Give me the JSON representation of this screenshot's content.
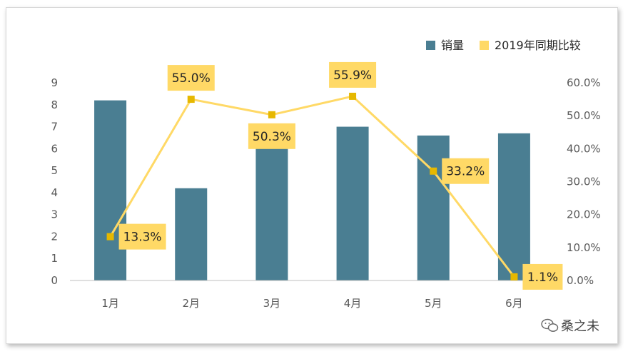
{
  "chart_data": {
    "type": "bar",
    "categories": [
      "1月",
      "2月",
      "3月",
      "4月",
      "5月",
      "6月"
    ],
    "series": [
      {
        "name": "销量",
        "type": "bar",
        "axis": "left",
        "color": "#4a7e92",
        "values": [
          8.2,
          4.2,
          7.1,
          7.0,
          6.6,
          6.7
        ]
      },
      {
        "name": "2019年同期比较",
        "type": "line",
        "axis": "right",
        "color": "#ffd966",
        "values": [
          13.3,
          55.0,
          50.3,
          55.9,
          33.2,
          1.1
        ],
        "labels": [
          "13.3%",
          "55.0%",
          "50.3%",
          "55.9%",
          "33.2%",
          "1.1%"
        ],
        "marker_color": "#e6b800"
      }
    ],
    "y_left": {
      "min": 0,
      "max": 9,
      "ticks": [
        "0",
        "1",
        "2",
        "3",
        "4",
        "5",
        "6",
        "7",
        "8",
        "9"
      ]
    },
    "y_right": {
      "min": 0,
      "max": 60,
      "ticks": [
        "0.0%",
        "10.0%",
        "20.0%",
        "30.0%",
        "40.0%",
        "50.0%",
        "60.0%"
      ]
    },
    "legend": {
      "position": "top-right",
      "items": [
        "销量",
        "2019年同期比较"
      ]
    },
    "grid": false,
    "label_bg_color": "#ffd966"
  },
  "watermark": {
    "text": "桑之未",
    "icon": "wechat-icon"
  }
}
